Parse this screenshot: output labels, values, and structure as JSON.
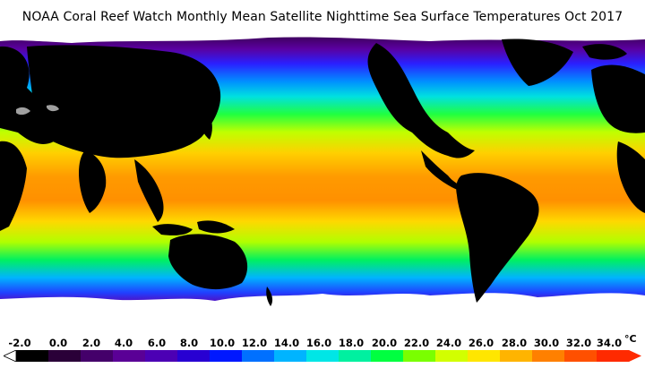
{
  "title": "NOAA Coral Reef Watch Monthly Mean Satellite Nighttime Sea Surface Temperatures    Oct 2017",
  "legend": {
    "unit": "°C",
    "ticks": [
      "-2.0",
      "0.0",
      "2.0",
      "4.0",
      "6.0",
      "8.0",
      "10.0",
      "12.0",
      "14.0",
      "16.0",
      "18.0",
      "20.0",
      "22.0",
      "24.0",
      "26.0",
      "28.0",
      "30.0",
      "32.0",
      "34.0"
    ],
    "colors": [
      "#000000",
      "#2a0038",
      "#44006a",
      "#5a0096",
      "#4c00b4",
      "#2800d2",
      "#0018ff",
      "#0070ff",
      "#00b4ff",
      "#00e6e6",
      "#00f0a0",
      "#00ff40",
      "#7aff00",
      "#d2ff00",
      "#ffe600",
      "#ffb400",
      "#ff8000",
      "#ff5000",
      "#ff2a00"
    ]
  },
  "colors": {
    "land": "#000000",
    "ice": "#ffffff",
    "lake": "#a0a0a0"
  }
}
